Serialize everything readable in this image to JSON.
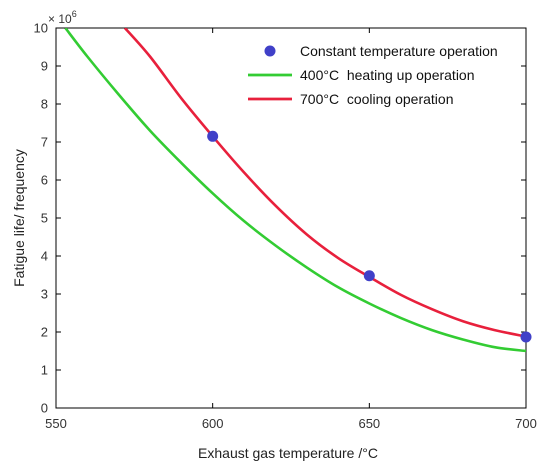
{
  "chart_data": {
    "type": "line",
    "xlabel": "Exhaust gas temperature /°C",
    "ylabel": "Fatigue life/ frequency",
    "xlim": [
      550,
      700
    ],
    "ylim": [
      0,
      10
    ],
    "y_multiplier_base": "× 10",
    "y_multiplier_exp": "6",
    "x_ticks": [
      "550",
      "600",
      "650",
      "700"
    ],
    "y_ticks": [
      "0",
      "1",
      "2",
      "3",
      "4",
      "5",
      "6",
      "7",
      "8",
      "9",
      "10"
    ],
    "legend_position": "top-right",
    "series": [
      {
        "name": "Constant temperature operation",
        "kind": "scatter",
        "color": "#4040c8",
        "x": [
          600,
          650,
          700
        ],
        "y": [
          7.15,
          3.48,
          1.87
        ]
      },
      {
        "name": "400°C  heating up operation",
        "kind": "line",
        "color": "#33cc33",
        "x": [
          553,
          560,
          570,
          580,
          590,
          600,
          610,
          620,
          630,
          640,
          650,
          660,
          670,
          680,
          690,
          700
        ],
        "y": [
          10.0,
          9.25,
          8.25,
          7.3,
          6.45,
          5.65,
          4.92,
          4.28,
          3.7,
          3.18,
          2.75,
          2.37,
          2.05,
          1.8,
          1.6,
          1.5
        ]
      },
      {
        "name": "700°C  cooling operation",
        "kind": "line",
        "color": "#e8203c",
        "x": [
          572,
          580,
          590,
          600,
          610,
          620,
          630,
          640,
          650,
          660,
          670,
          680,
          690,
          700
        ],
        "y": [
          10.0,
          9.25,
          8.15,
          7.15,
          6.2,
          5.33,
          4.57,
          3.95,
          3.45,
          2.98,
          2.6,
          2.28,
          2.05,
          1.88
        ]
      }
    ]
  }
}
